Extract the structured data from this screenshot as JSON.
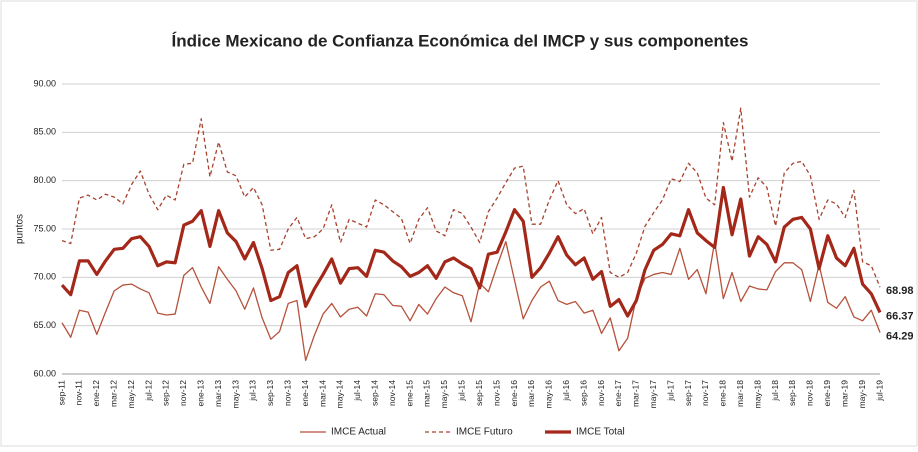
{
  "chart_data": {
    "type": "line",
    "title": "Índice Mexicano de Confianza Económica del IMCP y sus componentes",
    "y_label": "puntos",
    "categories": [
      "sep-11",
      null,
      "nov-11",
      null,
      "ene-12",
      null,
      "mar-12",
      null,
      "may-12",
      null,
      "jul-12",
      null,
      "sep-12",
      null,
      "nov-12",
      null,
      "ene-13",
      null,
      "mar-13",
      null,
      "may-13",
      null,
      "jul-13",
      null,
      "sep-13",
      null,
      "nov-13",
      null,
      "ene-14",
      null,
      "mar-14",
      null,
      "may-14",
      null,
      "jul-14",
      null,
      "sep-14",
      null,
      "nov-14",
      null,
      "ene-15",
      null,
      "mar-15",
      null,
      "may-15",
      null,
      "jul-15",
      null,
      "sep-15",
      null,
      "nov-15",
      null,
      "ene-16",
      null,
      "mar-16",
      null,
      "may-16",
      null,
      "jul-16",
      null,
      "sep-16",
      null,
      "nov-16",
      null,
      "ene-17",
      null,
      "mar-17",
      null,
      "may-17",
      null,
      "jul-17",
      null,
      "sep-17",
      null,
      "nov-17",
      null,
      "ene-18",
      null,
      "mar-18",
      null,
      "may-18",
      null,
      "jul-18",
      null,
      "sep-18",
      null,
      "nov-18",
      null,
      "ene-19",
      null,
      "mar-19",
      null,
      "may-19",
      null,
      "jul-19"
    ],
    "series": [
      {
        "name": "IMCE Actual",
        "color": "#b5523c",
        "style": "solid",
        "width": 1.3,
        "values": [
          65.3,
          63.8,
          66.6,
          66.4,
          64.1,
          66.4,
          68.6,
          69.2,
          69.3,
          68.8,
          68.4,
          66.3,
          66.1,
          66.2,
          70.2,
          71.0,
          69.0,
          67.3,
          71.1,
          69.8,
          68.6,
          66.7,
          68.9,
          65.8,
          63.6,
          64.4,
          67.3,
          67.6,
          61.4,
          64.0,
          66.2,
          67.3,
          65.9,
          66.7,
          66.9,
          66.0,
          68.3,
          68.2,
          67.1,
          67.0,
          65.5,
          67.2,
          66.2,
          67.8,
          69.0,
          68.4,
          68.1,
          65.4,
          69.4,
          68.5,
          71.2,
          73.7,
          69.7,
          65.7,
          67.6,
          69.0,
          69.6,
          67.6,
          67.2,
          67.5,
          66.3,
          66.6,
          64.2,
          65.8,
          62.4,
          63.7,
          67.9,
          69.9,
          70.3,
          70.5,
          70.3,
          73.0,
          69.8,
          70.8,
          68.3,
          73.7,
          67.8,
          70.5,
          67.5,
          69.1,
          68.8,
          68.7,
          70.6,
          71.5,
          71.5,
          70.8,
          67.5,
          71.3,
          67.4,
          66.8,
          68.0,
          65.9,
          65.5,
          66.6,
          64.29
        ]
      },
      {
        "name": "IMCE Futuro",
        "color": "#a8422e",
        "style": "dashed",
        "width": 1.3,
        "values": [
          73.8,
          73.5,
          78.2,
          78.5,
          78.0,
          78.6,
          78.3,
          77.6,
          79.6,
          81.0,
          78.6,
          77.0,
          78.5,
          78.0,
          81.7,
          81.8,
          86.4,
          80.4,
          84.0,
          80.9,
          80.5,
          78.3,
          79.3,
          77.5,
          72.8,
          72.9,
          75.0,
          76.2,
          74.0,
          74.2,
          75.0,
          77.5,
          73.6,
          76.0,
          75.6,
          75.2,
          78.0,
          77.5,
          76.8,
          76.1,
          73.5,
          76.0,
          77.2,
          74.8,
          74.3,
          77.0,
          76.6,
          75.2,
          73.6,
          76.8,
          78.2,
          79.8,
          81.3,
          81.5,
          75.5,
          75.5,
          78.0,
          80.0,
          77.5,
          76.6,
          77.1,
          74.5,
          76.2,
          70.5,
          70.0,
          70.5,
          72.5,
          75.3,
          76.7,
          78.0,
          80.2,
          79.9,
          81.8,
          80.8,
          78.2,
          77.5,
          86.0,
          82.0,
          87.5,
          78.3,
          80.3,
          79.3,
          75.3,
          80.8,
          81.8,
          82.0,
          80.5,
          76.0,
          78.0,
          77.6,
          76.2,
          79.0,
          71.6,
          71.2,
          68.98
        ]
      },
      {
        "name": "IMCE Total",
        "color": "#a3281a",
        "style": "solid",
        "width": 3.2,
        "values": [
          69.2,
          68.2,
          71.7,
          71.7,
          70.3,
          71.7,
          72.9,
          73.0,
          74.0,
          74.2,
          73.2,
          71.2,
          71.6,
          71.5,
          75.4,
          75.8,
          76.9,
          73.2,
          76.9,
          74.6,
          73.7,
          71.9,
          73.6,
          70.9,
          67.6,
          68.0,
          70.5,
          71.2,
          67.0,
          68.8,
          70.3,
          71.9,
          69.4,
          70.9,
          71.0,
          70.1,
          72.8,
          72.6,
          71.7,
          71.1,
          70.1,
          70.5,
          71.2,
          69.9,
          71.6,
          72.0,
          71.4,
          70.9,
          68.9,
          72.4,
          72.6,
          74.7,
          77.0,
          75.8,
          70.0,
          71.0,
          72.5,
          74.2,
          72.3,
          71.3,
          72.0,
          69.8,
          70.6,
          67.0,
          67.7,
          66.0,
          67.6,
          70.8,
          72.8,
          73.4,
          74.5,
          74.3,
          77.0,
          74.6,
          73.8,
          73.1,
          79.3,
          74.4,
          78.1,
          72.2,
          74.2,
          73.4,
          71.6,
          75.2,
          76.0,
          76.2,
          75.0,
          70.9,
          74.3,
          72.0,
          71.2,
          73.0,
          69.3,
          68.3,
          66.37
        ]
      }
    ],
    "ylim": [
      60,
      90
    ],
    "yticks": [
      {
        "value": 60,
        "label": "60.00"
      },
      {
        "value": 65,
        "label": "65.00"
      },
      {
        "value": 70,
        "label": "70.00"
      },
      {
        "value": 75,
        "label": "75.00"
      },
      {
        "value": 80,
        "label": "80.00"
      },
      {
        "value": 85,
        "label": "85.00"
      },
      {
        "value": 90,
        "label": "90.00"
      }
    ],
    "grid": true,
    "legend": "bottom",
    "end_labels": true
  }
}
